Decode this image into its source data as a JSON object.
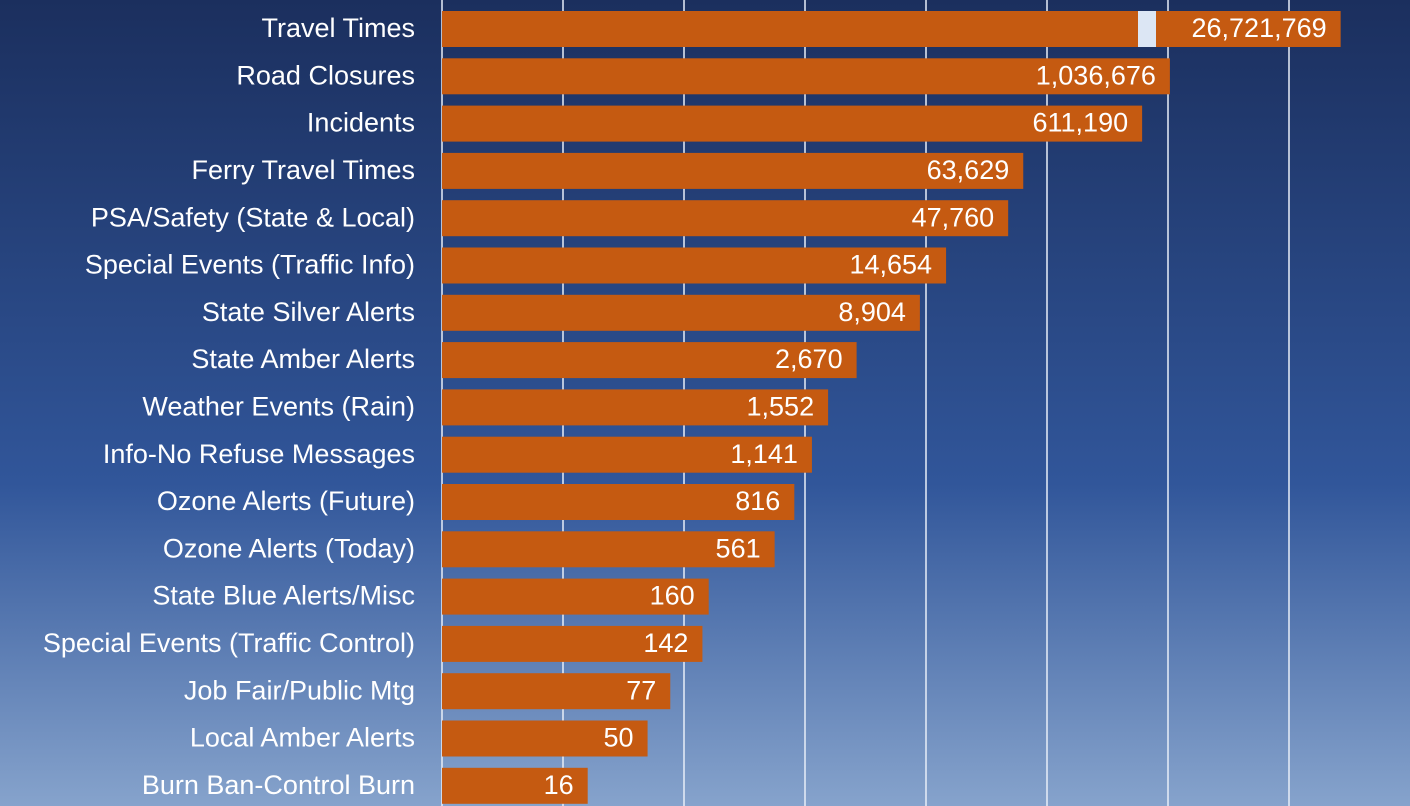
{
  "chart_data": {
    "type": "barh",
    "categories": [
      "Travel Times",
      "Road Closures",
      "Incidents",
      "Ferry Travel Times",
      "PSA/Safety (State & Local)",
      "Special Events (Traffic Info)",
      "State Silver Alerts",
      "State Amber Alerts",
      "Weather Events (Rain)",
      "Info-No Refuse Messages",
      "Ozone Alerts (Future)",
      "Ozone Alerts (Today)",
      "State Blue Alerts/Misc",
      "Special Events (Traffic Control)",
      "Job Fair/Public Mtg",
      "Local Amber Alerts",
      "Burn Ban-Control Burn"
    ],
    "values": [
      26721769,
      1036676,
      611190,
      63629,
      47760,
      14654,
      8904,
      2670,
      1552,
      1141,
      816,
      561,
      160,
      142,
      77,
      50,
      16
    ],
    "value_labels": [
      "26,721,769",
      "1,036,676",
      "611,190",
      "63,629",
      "47,760",
      "14,654",
      "8,904",
      "2,670",
      "1,552",
      "1,141",
      "816",
      "561",
      "160",
      "142",
      "77",
      "50",
      "16"
    ],
    "color": "#c55a11",
    "xscale": "log",
    "xlim": [
      1,
      100000000
    ],
    "xticks": [
      1,
      10,
      100,
      1000,
      10000,
      100000,
      1000000,
      10000000
    ],
    "grid": true
  }
}
